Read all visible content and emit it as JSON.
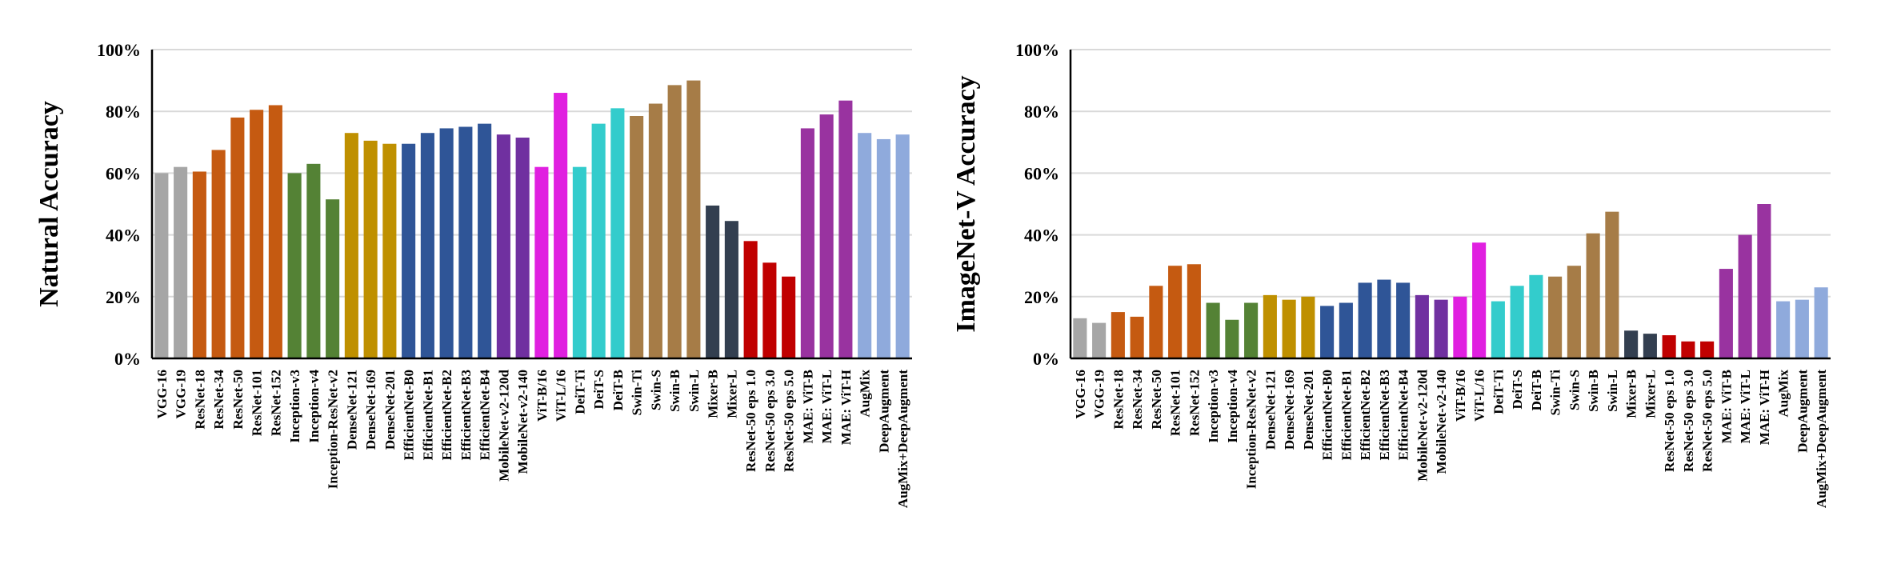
{
  "chart_data": [
    {
      "type": "bar",
      "ylabel": "Natural Accuracy",
      "ylim": [
        0,
        100
      ],
      "yticks": [
        "0%",
        "20%",
        "40%",
        "60%",
        "80%",
        "100%"
      ],
      "grid": true,
      "categories": [
        "VGG-16",
        "VGG-19",
        "ResNet-18",
        "ResNet-34",
        "ResNet-50",
        "ResNet-101",
        "ResNet-152",
        "Inception-v3",
        "Inception-v4",
        "Inception-ResNet-v2",
        "DenseNet-121",
        "DenseNet-169",
        "DenseNet-201",
        "EfficientNet-B0",
        "EfficientNet-B1",
        "EfficientNet-B2",
        "EfficientNet-B3",
        "EfficientNet-B4",
        "MobileNet-v2-120d",
        "MobileNet-v2-140",
        "ViT-B/16",
        "ViT-L/16",
        "DeiT-Ti",
        "DeiT-S",
        "DeiT-B",
        "Swin-Ti",
        "Swin-S",
        "Swin-B",
        "Swin-L",
        "Mixer-B",
        "Mixer-L",
        "ResNet-50 eps 1.0",
        "ResNet-50 eps 3.0",
        "ResNet-50 eps 5.0",
        "MAE: ViT-B",
        "MAE: ViT-L",
        "MAE: ViT-H",
        "AugMix",
        "DeepAugment",
        "AugMix+DeepAugment"
      ],
      "values": [
        60,
        62,
        60.5,
        67.5,
        78,
        80.5,
        82,
        60,
        63,
        51.5,
        73,
        70.5,
        69.5,
        69.5,
        73,
        74.5,
        75,
        76,
        72.5,
        71.5,
        62,
        86,
        62,
        76,
        81,
        78.5,
        82.5,
        88.5,
        90,
        49.5,
        44.5,
        38,
        31,
        26.5,
        74.5,
        79,
        83.5,
        73,
        71,
        72.5
      ],
      "colors": [
        "#a6a6a6",
        "#a6a6a6",
        "#c55a11",
        "#c55a11",
        "#c55a11",
        "#c55a11",
        "#c55a11",
        "#548235",
        "#548235",
        "#548235",
        "#bf9000",
        "#bf9000",
        "#bf9000",
        "#2f5597",
        "#2f5597",
        "#2f5597",
        "#2f5597",
        "#2f5597",
        "#7030a0",
        "#7030a0",
        "#e020e0",
        "#e020e0",
        "#33cccc",
        "#33cccc",
        "#33cccc",
        "#a67c47",
        "#a67c47",
        "#a67c47",
        "#a67c47",
        "#333f50",
        "#333f50",
        "#c00000",
        "#c00000",
        "#c00000",
        "#9933a0",
        "#9933a0",
        "#9933a0",
        "#8faadc",
        "#8faadc",
        "#8faadc"
      ]
    },
    {
      "type": "bar",
      "ylabel": "ImageNet-V Accuracy",
      "ylim": [
        0,
        100
      ],
      "yticks": [
        "0%",
        "20%",
        "40%",
        "60%",
        "80%",
        "100%"
      ],
      "grid": true,
      "categories": [
        "VGG-16",
        "VGG-19",
        "ResNet-18",
        "ResNet-34",
        "ResNet-50",
        "ResNet-101",
        "ResNet-152",
        "Inception-v3",
        "Inception-v4",
        "Inception-ResNet-v2",
        "DenseNet-121",
        "DenseNet-169",
        "DenseNet-201",
        "EfficientNet-B0",
        "EfficientNet-B1",
        "EfficientNet-B2",
        "EfficientNet-B3",
        "EfficientNet-B4",
        "MobileNet-v2-120d",
        "MobileNet-v2-140",
        "ViT-B/16",
        "ViT-L/16",
        "DeiT-Ti",
        "DeiT-S",
        "DeiT-B",
        "Swin-Ti",
        "Swin-S",
        "Swin-B",
        "Swin-L",
        "Mixer-B",
        "Mixer-L",
        "ResNet-50 eps 1.0",
        "ResNet-50 eps 3.0",
        "ResNet-50 eps 5.0",
        "MAE: ViT-B",
        "MAE: ViT-L",
        "MAE: ViT-H",
        "AugMix",
        "DeepAugment",
        "AugMix+DeepAugment"
      ],
      "values": [
        13,
        11.5,
        15,
        13.5,
        23.5,
        30,
        30.5,
        18,
        12.5,
        18,
        20.5,
        19,
        20,
        17,
        18,
        24.5,
        25.5,
        24.5,
        20.5,
        19,
        20,
        37.5,
        18.5,
        23.5,
        27,
        26.5,
        30,
        40.5,
        47.5,
        9,
        8,
        7.5,
        5.5,
        5.5,
        29,
        40,
        50,
        18.5,
        19,
        23
      ],
      "colors": [
        "#a6a6a6",
        "#a6a6a6",
        "#c55a11",
        "#c55a11",
        "#c55a11",
        "#c55a11",
        "#c55a11",
        "#548235",
        "#548235",
        "#548235",
        "#bf9000",
        "#bf9000",
        "#bf9000",
        "#2f5597",
        "#2f5597",
        "#2f5597",
        "#2f5597",
        "#2f5597",
        "#7030a0",
        "#7030a0",
        "#e020e0",
        "#e020e0",
        "#33cccc",
        "#33cccc",
        "#33cccc",
        "#a67c47",
        "#a67c47",
        "#a67c47",
        "#a67c47",
        "#333f50",
        "#333f50",
        "#c00000",
        "#c00000",
        "#c00000",
        "#9933a0",
        "#9933a0",
        "#9933a0",
        "#8faadc",
        "#8faadc",
        "#8faadc"
      ]
    }
  ]
}
